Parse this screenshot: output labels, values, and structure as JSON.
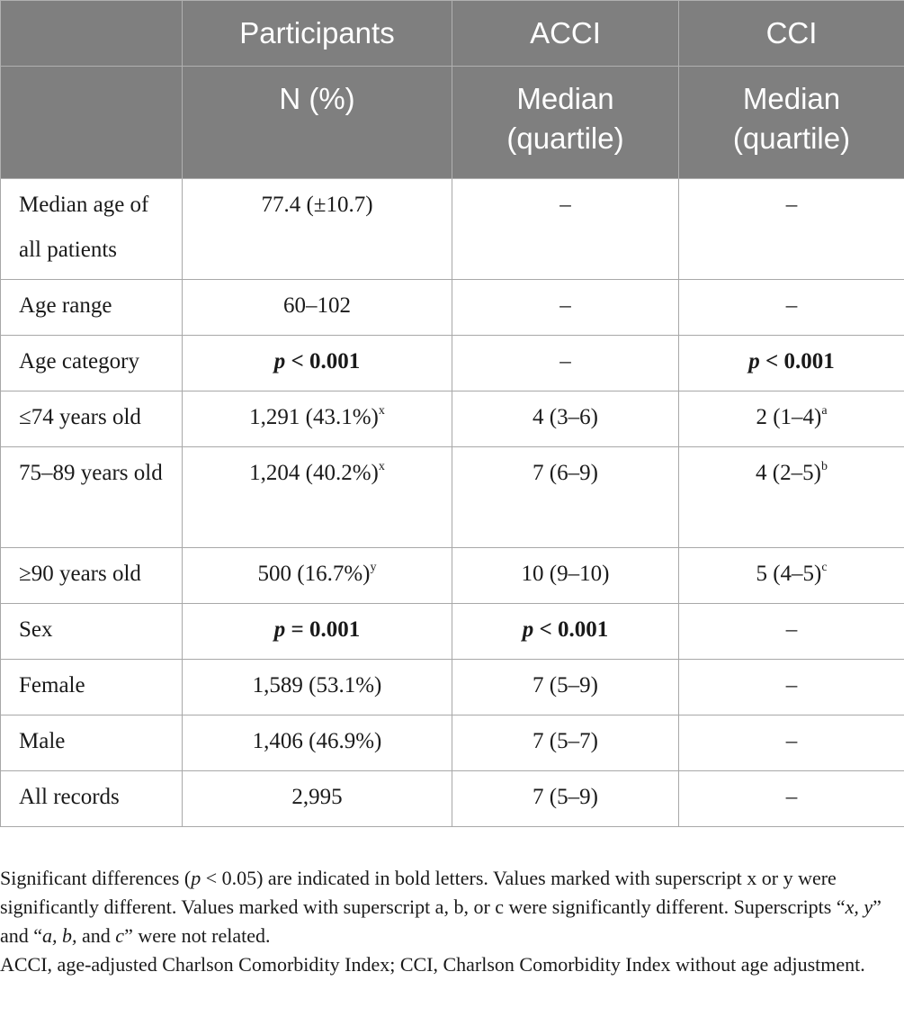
{
  "header": {
    "row1": [
      "",
      "Participants",
      "ACCI",
      "CCI"
    ],
    "row2": [
      "",
      "N (%)",
      "Median (quartile)",
      "Median (quartile)"
    ]
  },
  "rows": [
    {
      "label": "Median age of all patients",
      "participants": "77.4 (±10.7)",
      "participants_sup": "",
      "acci": "–",
      "acci_sup": "",
      "cci": "–",
      "cci_sup": ""
    },
    {
      "label": "Age range",
      "participants": "60–102",
      "participants_sup": "",
      "acci": "–",
      "acci_sup": "",
      "cci": "–",
      "cci_sup": ""
    },
    {
      "label": "Age category",
      "participants": "p < 0.001",
      "participants_sup": "",
      "acci": "–",
      "acci_sup": "",
      "cci": "p < 0.001",
      "cci_sup": ""
    },
    {
      "label": "≤74 years old",
      "participants": "1,291 (43.1%)",
      "participants_sup": "x",
      "acci": "4 (3–6)",
      "acci_sup": "",
      "cci": "2 (1–4)",
      "cci_sup": "a"
    },
    {
      "label": "75–89 years old",
      "participants": "1,204 (40.2%)",
      "participants_sup": "x",
      "acci": "7 (6–9)",
      "acci_sup": "",
      "cci": "4 (2–5)",
      "cci_sup": "b"
    },
    {
      "label": "≥90 years old",
      "participants": "500 (16.7%)",
      "participants_sup": "y",
      "acci": "10 (9–10)",
      "acci_sup": "",
      "cci": "5 (4–5)",
      "cci_sup": "c"
    },
    {
      "label": "Sex",
      "participants": "p = 0.001",
      "participants_sup": "",
      "acci": "p < 0.001",
      "acci_sup": "",
      "cci": "–",
      "cci_sup": ""
    },
    {
      "label": "Female",
      "participants": "1,589 (53.1%)",
      "participants_sup": "",
      "acci": "7 (5–9)",
      "acci_sup": "",
      "cci": "–",
      "cci_sup": ""
    },
    {
      "label": "Male",
      "participants": "1,406 (46.9%)",
      "participants_sup": "",
      "acci": "7 (5–7)",
      "acci_sup": "",
      "cci": "–",
      "cci_sup": ""
    },
    {
      "label": "All records",
      "participants": "2,995",
      "participants_sup": "",
      "acci": "7 (5–9)",
      "acci_sup": "",
      "cci": "–",
      "cci_sup": ""
    }
  ],
  "pvalues": {
    "age_participants": {
      "p": "p",
      "rest": " < 0.001"
    },
    "age_cci": {
      "p": "p",
      "rest": " < 0.001"
    },
    "sex_participants": {
      "p": "p",
      "rest": " = 0.001"
    },
    "sex_acci": {
      "p": "p",
      "rest": " < 0.001"
    }
  },
  "footnotes": {
    "line1_a": "Significant differences (",
    "line1_p": "p",
    "line1_b": " < 0.05) are indicated in bold letters. Values marked with superscript x or y were significantly different. Values marked with superscript a, b, or c were significantly different. Superscripts “",
    "line1_xy": "x, y",
    "line1_c": "” and “",
    "line1_abc": "a, b,",
    "line1_d": " and ",
    "line1_cc": "c",
    "line1_e": "” were not related.",
    "line2": "ACCI, age-adjusted Charlson Comorbidity Index; CCI, Charlson Comorbidity Index without age adjustment."
  }
}
